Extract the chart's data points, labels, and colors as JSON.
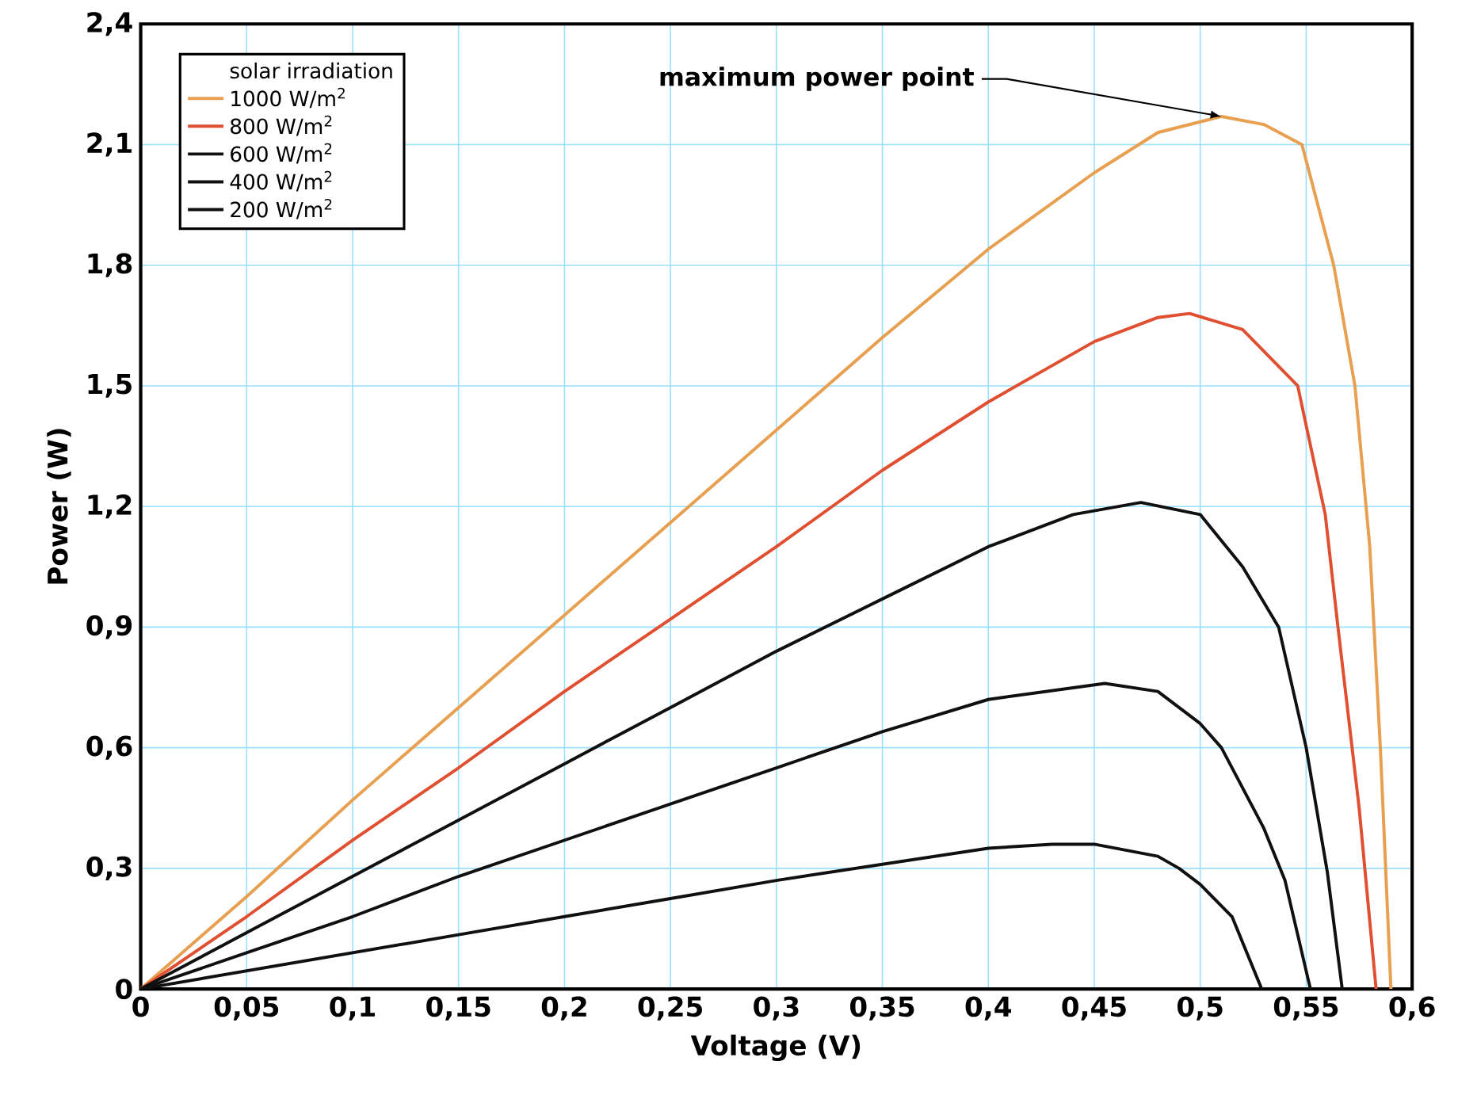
{
  "chart_data": {
    "type": "line",
    "xlabel": "Voltage (V)",
    "ylabel": "Power (W)",
    "legend_title": "solar irradiation",
    "xlim": [
      0,
      0.6
    ],
    "ylim": [
      0,
      2.4
    ],
    "xticks": [
      0,
      {
        "value": 0.05,
        "label": "0,05"
      },
      {
        "value": 0.1,
        "label": "0,1"
      },
      {
        "value": 0.15,
        "label": "0,15"
      },
      {
        "value": 0.2,
        "label": "0,2"
      },
      {
        "value": 0.25,
        "label": "0,25"
      },
      {
        "value": 0.3,
        "label": "0,3"
      },
      {
        "value": 0.35,
        "label": "0,35"
      },
      {
        "value": 0.4,
        "label": "0,4"
      },
      {
        "value": 0.45,
        "label": "0,45"
      },
      {
        "value": 0.5,
        "label": "0,5"
      },
      {
        "value": 0.55,
        "label": "0,55"
      },
      {
        "value": 0.6,
        "label": "0,6"
      }
    ],
    "yticks": [
      0,
      {
        "value": 0.3,
        "label": "0,3"
      },
      {
        "value": 0.6,
        "label": "0,6"
      },
      {
        "value": 0.9,
        "label": "0,9"
      },
      {
        "value": 1.2,
        "label": "1,2"
      },
      {
        "value": 1.5,
        "label": "1,5"
      },
      {
        "value": 1.8,
        "label": "1,8"
      },
      {
        "value": 2.1,
        "label": "2,1"
      },
      {
        "value": 2.4,
        "label": "2,4"
      }
    ],
    "grid": true,
    "legend": "top left",
    "annotations": [
      {
        "text": "maximum power point",
        "x": 0.51,
        "y": 2.17
      }
    ],
    "series": [
      {
        "name": "1000 W/m$^{2}$",
        "color": "#e8a050",
        "x": [
          0,
          0.05,
          0.1,
          0.15,
          0.2,
          0.25,
          0.3,
          0.35,
          0.4,
          0.45,
          0.48,
          0.51,
          0.53,
          0.548,
          0.563,
          0.573,
          0.58,
          0.585,
          0.59
        ],
        "values": [
          0,
          0.23,
          0.47,
          0.7,
          0.93,
          1.16,
          1.39,
          1.62,
          1.84,
          2.03,
          2.13,
          2.17,
          2.15,
          2.1,
          1.8,
          1.5,
          1.1,
          0.6,
          0
        ]
      },
      {
        "name": "800 W/m$^{2}$",
        "color": "#e05030",
        "x": [
          0,
          0.05,
          0.1,
          0.15,
          0.2,
          0.25,
          0.3,
          0.35,
          0.4,
          0.45,
          0.48,
          0.495,
          0.52,
          0.546,
          0.559,
          0.565,
          0.575,
          0.583
        ],
        "values": [
          0,
          0.18,
          0.37,
          0.55,
          0.74,
          0.92,
          1.1,
          1.29,
          1.46,
          1.61,
          1.67,
          1.68,
          1.64,
          1.5,
          1.18,
          0.9,
          0.45,
          0
        ]
      },
      {
        "name": "600 W/m$^{2}$",
        "color": "#101010",
        "x": [
          0,
          0.05,
          0.1,
          0.15,
          0.2,
          0.25,
          0.3,
          0.35,
          0.4,
          0.44,
          0.472,
          0.5,
          0.52,
          0.537,
          0.55,
          0.56,
          0.567
        ],
        "values": [
          0,
          0.14,
          0.28,
          0.42,
          0.56,
          0.7,
          0.84,
          0.97,
          1.1,
          1.18,
          1.21,
          1.18,
          1.05,
          0.9,
          0.6,
          0.29,
          0
        ]
      },
      {
        "name": "400 W/m$^{2}$",
        "color": "#101010",
        "x": [
          0,
          0.05,
          0.1,
          0.15,
          0.2,
          0.25,
          0.3,
          0.35,
          0.4,
          0.455,
          0.48,
          0.5,
          0.51,
          0.53,
          0.54,
          0.552
        ],
        "values": [
          0,
          0.09,
          0.18,
          0.28,
          0.37,
          0.46,
          0.55,
          0.64,
          0.72,
          0.76,
          0.74,
          0.66,
          0.6,
          0.4,
          0.27,
          0
        ]
      },
      {
        "name": "200 W/m$^{2}$",
        "color": "#101010",
        "x": [
          0,
          0.05,
          0.1,
          0.15,
          0.2,
          0.25,
          0.3,
          0.35,
          0.4,
          0.43,
          0.45,
          0.48,
          0.49,
          0.5,
          0.515,
          0.529
        ],
        "values": [
          0,
          0.045,
          0.09,
          0.135,
          0.18,
          0.225,
          0.27,
          0.31,
          0.35,
          0.36,
          0.36,
          0.33,
          0.3,
          0.26,
          0.18,
          0
        ]
      }
    ]
  }
}
